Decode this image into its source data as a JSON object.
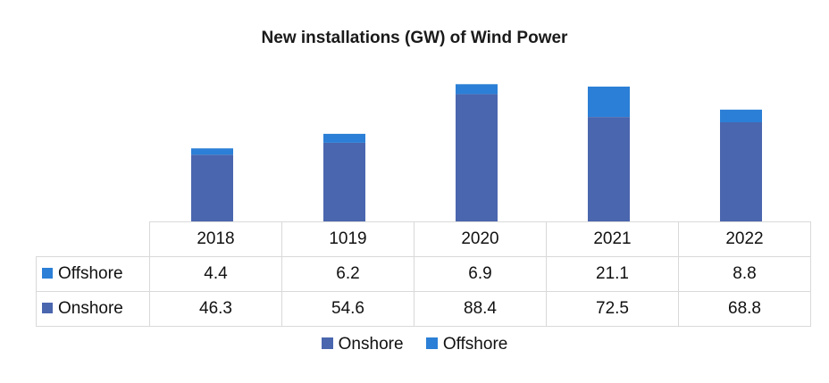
{
  "chart_data": {
    "type": "bar",
    "stacked": true,
    "title": "New installations (GW) of Wind Power",
    "categories": [
      "2018",
      "1019",
      "2020",
      "2021",
      "2022"
    ],
    "series": [
      {
        "name": "Onshore",
        "values": [
          46.3,
          54.6,
          88.4,
          72.5,
          68.8
        ],
        "color": "#4a66ae"
      },
      {
        "name": "Offshore",
        "values": [
          4.4,
          6.2,
          6.9,
          21.1,
          8.8
        ],
        "color": "#2b7fd6"
      }
    ],
    "table_row_order": [
      "Offshore",
      "Onshore"
    ],
    "data_table": true,
    "grid": false,
    "legend_position": "bottom"
  }
}
